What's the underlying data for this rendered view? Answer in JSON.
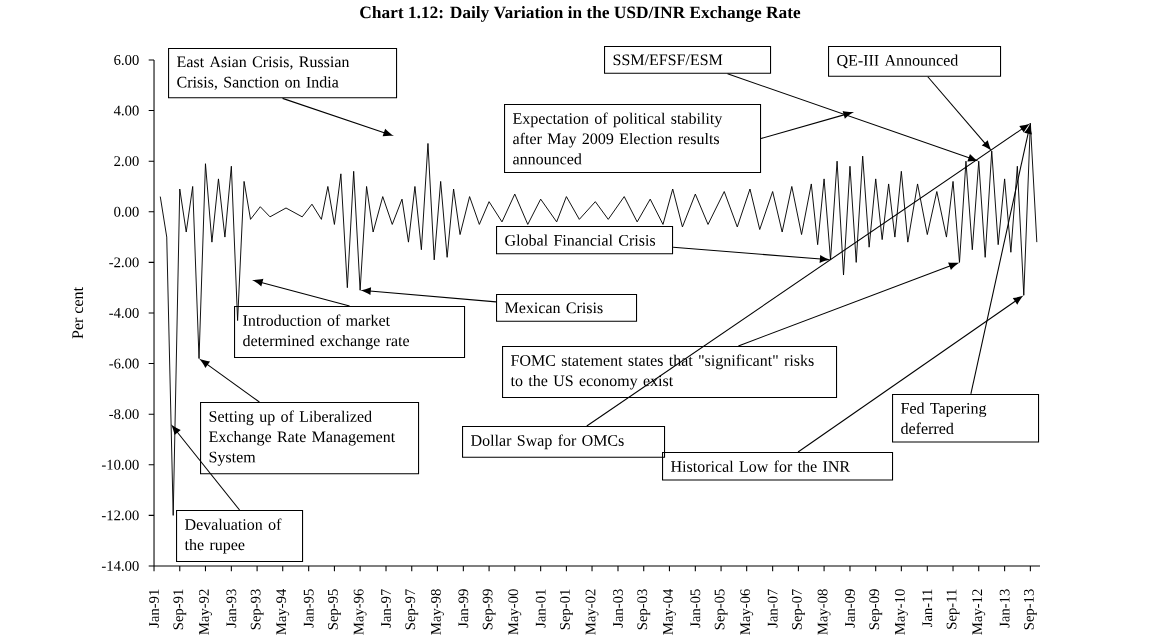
{
  "chart_data": {
    "type": "line",
    "title": "Chart 1.12: Daily Variation in the USD/INR Exchange Rate",
    "ylabel": "Per cent",
    "color": "#000000",
    "x": [
      "1991-03-01",
      "1991-05-01",
      "1991-07-01",
      "1991-09-01",
      "1991-11-01",
      "1992-01-01",
      "1992-03-01",
      "1992-05-01",
      "1992-07-01",
      "1992-09-01",
      "1992-11-01",
      "1993-01-01",
      "1993-03-01",
      "1993-05-01",
      "1993-07-01",
      "1993-10-01",
      "1994-01-01",
      "1994-06-01",
      "1994-11-01",
      "1995-02-01",
      "1995-05-01",
      "1995-07-01",
      "1995-09-01",
      "1995-11-01",
      "1996-01-01",
      "1996-03-01",
      "1996-05-01",
      "1996-07-01",
      "1996-09-01",
      "1996-12-01",
      "1997-03-01",
      "1997-06-01",
      "1997-08-01",
      "1997-10-01",
      "1997-12-01",
      "1998-02-01",
      "1998-04-01",
      "1998-06-01",
      "1998-08-01",
      "1998-10-01",
      "1998-12-01",
      "1999-03-01",
      "1999-06-01",
      "1999-09-01",
      "2000-01-01",
      "2000-05-01",
      "2000-09-01",
      "2001-01-01",
      "2001-06-01",
      "2001-09-01",
      "2002-01-01",
      "2002-06-01",
      "2002-10-01",
      "2003-03-01",
      "2003-07-01",
      "2003-11-01",
      "2004-03-01",
      "2004-06-01",
      "2004-09-01",
      "2005-01-01",
      "2005-05-01",
      "2005-10-01",
      "2006-02-01",
      "2006-06-01",
      "2006-09-01",
      "2007-01-01",
      "2007-04-01",
      "2007-07-01",
      "2007-10-01",
      "2008-01-01",
      "2008-03-01",
      "2008-05-01",
      "2008-07-01",
      "2008-09-01",
      "2008-11-01",
      "2009-01-01",
      "2009-03-01",
      "2009-05-01",
      "2009-07-01",
      "2009-09-01",
      "2009-11-01",
      "2010-01-01",
      "2010-03-01",
      "2010-05-01",
      "2010-07-01",
      "2010-10-01",
      "2011-01-01",
      "2011-04-01",
      "2011-07-01",
      "2011-09-01",
      "2011-11-01",
      "2012-01-01",
      "2012-03-01",
      "2012-05-01",
      "2012-07-01",
      "2012-09-01",
      "2012-11-01",
      "2013-01-01",
      "2013-03-01",
      "2013-05-01",
      "2013-07-01",
      "2013-09-01",
      "2013-11-01"
    ],
    "values": [
      0.6,
      -1.0,
      -12.0,
      0.9,
      -0.8,
      1.0,
      -5.8,
      1.9,
      -1.2,
      1.3,
      -1.0,
      1.8,
      -4.3,
      1.2,
      -0.3,
      0.2,
      -0.2,
      0.15,
      -0.2,
      0.3,
      -0.3,
      1.0,
      -0.5,
      1.5,
      -3.0,
      1.6,
      -3.1,
      1.0,
      -0.8,
      0.6,
      -0.5,
      0.5,
      -1.2,
      1.0,
      -1.5,
      2.7,
      -1.9,
      1.2,
      -1.8,
      0.9,
      -0.9,
      0.6,
      -0.5,
      0.4,
      -0.4,
      0.7,
      -0.5,
      0.5,
      -0.4,
      0.6,
      -0.3,
      0.4,
      -0.3,
      0.6,
      -0.4,
      0.5,
      -0.5,
      0.9,
      -0.6,
      0.7,
      -0.5,
      0.8,
      -0.6,
      0.9,
      -0.7,
      0.8,
      -0.8,
      1.0,
      -0.9,
      1.1,
      -1.3,
      1.3,
      -1.9,
      2.0,
      -2.5,
      1.8,
      -2.0,
      2.2,
      -1.4,
      1.3,
      -1.1,
      1.1,
      -1.0,
      1.6,
      -1.2,
      1.1,
      -0.9,
      0.8,
      -1.0,
      1.2,
      -2.0,
      2.0,
      -1.5,
      2.0,
      -1.8,
      2.4,
      -1.3,
      1.3,
      -1.6,
      1.8,
      -3.3,
      3.5,
      -1.2
    ],
    "xlim": [
      "1991-01-01",
      "2013-12-01"
    ],
    "ylim": [
      -14,
      6
    ],
    "yticks": [
      {
        "value": 6,
        "label": "6.00"
      },
      {
        "value": 4,
        "label": "4.00"
      },
      {
        "value": 2,
        "label": "2.00"
      },
      {
        "value": 0,
        "label": "0.00"
      },
      {
        "value": -2,
        "label": "-2.00"
      },
      {
        "value": -4,
        "label": "-4.00"
      },
      {
        "value": -6,
        "label": "-6.00"
      },
      {
        "value": -8,
        "label": "-8.00"
      },
      {
        "value": -10,
        "label": "-10.00"
      },
      {
        "value": -12,
        "label": "-12.00"
      },
      {
        "value": -14,
        "label": "-14.00"
      }
    ],
    "xticks": [
      {
        "value": "1991-01",
        "label": "Jan-91"
      },
      {
        "value": "1991-09",
        "label": "Sep-91"
      },
      {
        "value": "1992-05",
        "label": "May-92"
      },
      {
        "value": "1993-01",
        "label": "Jan-93"
      },
      {
        "value": "1993-09",
        "label": "Sep-93"
      },
      {
        "value": "1994-05",
        "label": "May-94"
      },
      {
        "value": "1995-01",
        "label": "Jan-95"
      },
      {
        "value": "1995-09",
        "label": "Sep-95"
      },
      {
        "value": "1996-05",
        "label": "May-96"
      },
      {
        "value": "1997-01",
        "label": "Jan-97"
      },
      {
        "value": "1997-09",
        "label": "Sep-97"
      },
      {
        "value": "1998-05",
        "label": "May-98"
      },
      {
        "value": "1999-01",
        "label": "Jan-99"
      },
      {
        "value": "1999-09",
        "label": "Sep-99"
      },
      {
        "value": "2000-05",
        "label": "May-00"
      },
      {
        "value": "2001-01",
        "label": "Jan-01"
      },
      {
        "value": "2001-09",
        "label": "Sep-01"
      },
      {
        "value": "2002-05",
        "label": "May-02"
      },
      {
        "value": "2003-01",
        "label": "Jan-03"
      },
      {
        "value": "2003-09",
        "label": "Sep-03"
      },
      {
        "value": "2004-05",
        "label": "May-04"
      },
      {
        "value": "2005-01",
        "label": "Jan-05"
      },
      {
        "value": "2005-09",
        "label": "Sep-05"
      },
      {
        "value": "2006-05",
        "label": "May-06"
      },
      {
        "value": "2007-01",
        "label": "Jan-07"
      },
      {
        "value": "2007-09",
        "label": "Sep-07"
      },
      {
        "value": "2008-05",
        "label": "May-08"
      },
      {
        "value": "2009-01",
        "label": "Jan-09"
      },
      {
        "value": "2009-09",
        "label": "Sep-09"
      },
      {
        "value": "2010-05",
        "label": "May-10"
      },
      {
        "value": "2011-01",
        "label": "Jan-11"
      },
      {
        "value": "2011-09",
        "label": "Sep-11"
      },
      {
        "value": "2012-05",
        "label": "May-12"
      },
      {
        "value": "2013-01",
        "label": "Jan-13"
      },
      {
        "value": "2013-09",
        "label": "Sep-13"
      }
    ],
    "annotations": [
      "East Asian Crisis, Russian Crisis, Sanction on India",
      "Expectation of political stability after May 2009 Election results announced",
      {
        "text": "SSM/EFSF/ESM",
        "x": "2012-05-01",
        "y": 2.0
      },
      {
        "text": "QE-III Announced",
        "x": "2012-09-01",
        "y": 2.4
      },
      {
        "text": "Global Financial Crisis",
        "x": "2008-07-01",
        "y": -1.9
      },
      {
        "text": "Mexican Crisis",
        "x": "1996-05-01",
        "y": -3.1
      },
      "Introduction of market determined exchange rate",
      {
        "text": "FOMC statement states that \"significant\" risks to the US economy exist",
        "x": "2011-11-01",
        "y": -2.0
      },
      {
        "text": "Dollar Swap for OMCs",
        "x": "2013-09-01",
        "y": 3.5
      },
      {
        "text": "Historical Low for the INR",
        "x": "2013-07-01",
        "y": -3.3
      },
      {
        "text": "Fed Tapering deferred",
        "x": "2013-09-01",
        "y": 3.5
      },
      {
        "text": "Setting up of Liberalized Exchange Rate Management System",
        "x": "1992-03-01",
        "y": -5.8
      },
      {
        "text": "Devaluation of the rupee",
        "x": "1991-06-10",
        "y": -8.4
      }
    ]
  }
}
